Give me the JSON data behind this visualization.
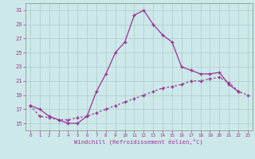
{
  "xlabel": "Windchill (Refroidissement éolien,°C)",
  "x": [
    0,
    1,
    2,
    3,
    4,
    5,
    6,
    7,
    8,
    9,
    10,
    11,
    12,
    13,
    14,
    15,
    16,
    17,
    18,
    19,
    20,
    21,
    22,
    23
  ],
  "line1_x": [
    0,
    1,
    2,
    3,
    4,
    5,
    6,
    7,
    8,
    9,
    10,
    11,
    12,
    13,
    14,
    15,
    16,
    17,
    18,
    19,
    20,
    21,
    22
  ],
  "line1_y": [
    17.5,
    17.0,
    16.0,
    15.5,
    15.0,
    15.0,
    16.0,
    19.5,
    22.0,
    25.0,
    26.5,
    30.3,
    31.0,
    29.0,
    27.5,
    26.5,
    23.0,
    22.5,
    22.0,
    22.0,
    22.2,
    20.5,
    19.5
  ],
  "line2_x": [
    0,
    1,
    2,
    3,
    4,
    5,
    6,
    7,
    8,
    9,
    10,
    11,
    12,
    13,
    14,
    15,
    16,
    17,
    18,
    19,
    20,
    21,
    22,
    23
  ],
  "line2_y": [
    17.5,
    16.0,
    15.8,
    15.5,
    15.5,
    15.8,
    16.0,
    16.5,
    17.0,
    17.5,
    18.0,
    18.5,
    19.0,
    19.5,
    20.0,
    20.2,
    20.5,
    21.0,
    21.0,
    21.3,
    21.5,
    20.8,
    19.5,
    19.0
  ],
  "bg_color": "#cde8e8",
  "line_color": "#993399",
  "grid_color": "#aacccc",
  "ylim": [
    14,
    32
  ],
  "yticks": [
    15,
    17,
    19,
    21,
    23,
    25,
    27,
    29,
    31
  ],
  "xlim": [
    -0.5,
    23.5
  ],
  "xticks": [
    0,
    1,
    2,
    3,
    4,
    5,
    6,
    7,
    8,
    9,
    10,
    11,
    12,
    13,
    14,
    15,
    16,
    17,
    18,
    19,
    20,
    21,
    22,
    23
  ]
}
